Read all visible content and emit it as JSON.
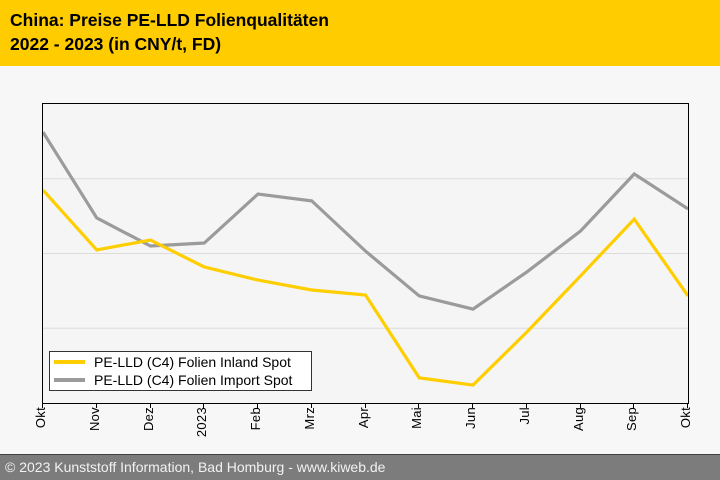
{
  "header": {
    "title_line1": "China: Preise PE-LLD Folienqualitäten",
    "title_line2": "2022 - 2023 (in CNY/t, FD)"
  },
  "footer": {
    "text": "© 2023 Kunststoff Information, Bad Homburg - www.kiweb.de"
  },
  "colors": {
    "header_bg": "#FFCC00",
    "page_bg": "#F7F7F7",
    "plot_bg": "#F5F5F5",
    "axis": "#000000",
    "gridline": "#DCDCDC",
    "inland_yellow": "#FFCE00",
    "import_gray": "#9B9B9B",
    "footer_bg": "#7C7C7C",
    "footer_text": "#F2F2F2",
    "legend_bg": "#FFFFFF",
    "legend_border": "#333333"
  },
  "chart_data": {
    "type": "line",
    "title": "China: Preise PE-LLD Folienqualitäten 2022 - 2023 (in CNY/t, FD)",
    "xlabel": "",
    "ylabel": "",
    "unit": "CNY/t, FD",
    "x_tick_label_rotation_deg": -90,
    "y_axis_tick_labels_visible": false,
    "value_scale_note": "y-axis has no printed numbers; values are percent of plot height above x-axis",
    "ylim": [
      0,
      100
    ],
    "gridlines_y": [
      25,
      50,
      75
    ],
    "legend_position": "bottom-left-inside",
    "categories": [
      "Okt",
      "Nov",
      "Dez",
      "2023",
      "Feb",
      "Mrz",
      "Apr",
      "Mai",
      "Jun",
      "Jul",
      "Aug",
      "Sep",
      "Okt"
    ],
    "series": [
      {
        "name": "PE-LLD (C4) Folien Inland Spot",
        "color": "#FFCE00",
        "values": [
          71.2,
          51.2,
          54.5,
          45.5,
          41.1,
          37.8,
          36.1,
          8.4,
          6.0,
          23.7,
          42.5,
          61.5,
          35.8
        ]
      },
      {
        "name": "PE-LLD (C4) Folien Import Spot",
        "color": "#9B9B9B",
        "values": [
          90.6,
          61.9,
          52.5,
          53.5,
          69.9,
          67.6,
          50.8,
          35.8,
          31.4,
          43.8,
          57.5,
          76.6,
          64.9
        ]
      }
    ]
  }
}
